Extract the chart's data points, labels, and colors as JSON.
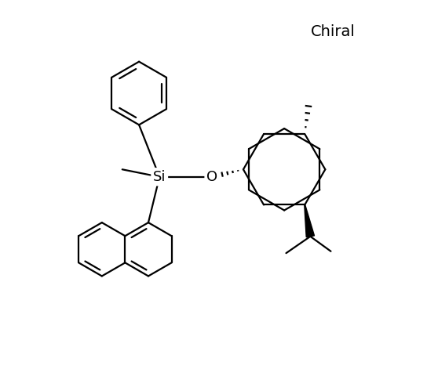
{
  "background_color": "#ffffff",
  "line_color": "#000000",
  "lw": 1.6,
  "figsize": [
    5.44,
    4.8
  ],
  "dpi": 100,
  "chiral_text": "Chiral",
  "Si_label": "Si",
  "O_label": "O"
}
